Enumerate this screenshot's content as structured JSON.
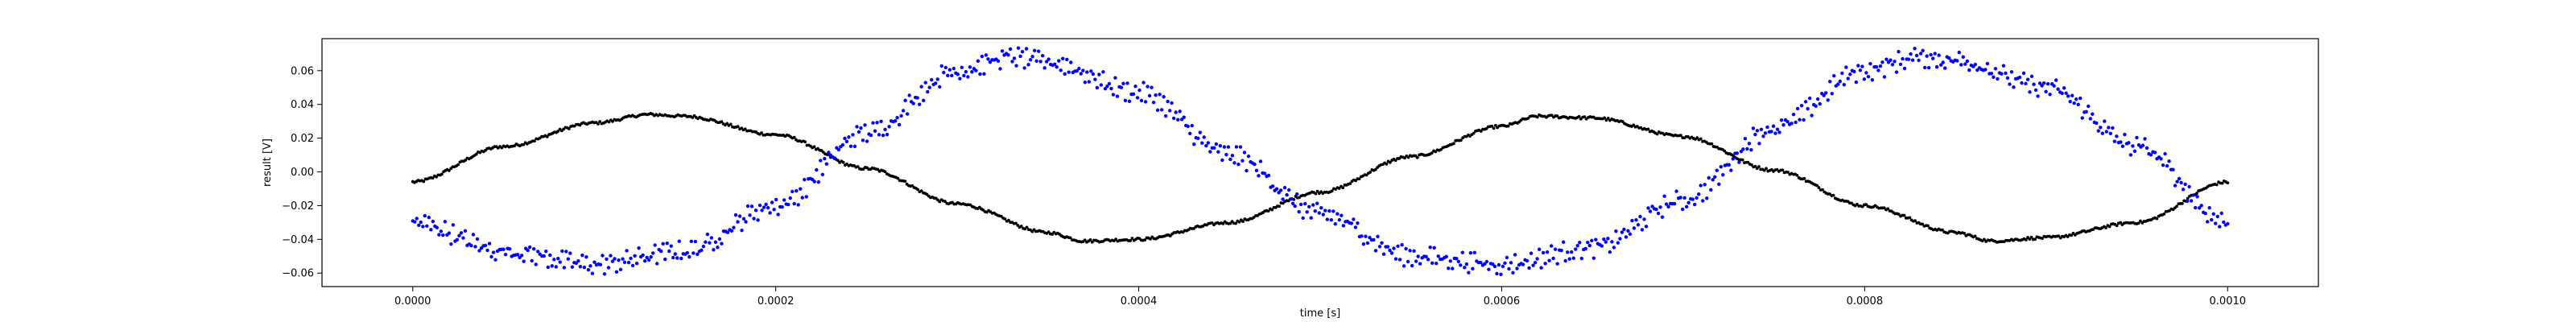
{
  "chart_data": {
    "type": "scatter",
    "title": "",
    "xlabel": "time [s]",
    "ylabel": "result [V]",
    "xlim": [
      -5e-05,
      0.00105
    ],
    "ylim": [
      -0.068,
      0.079
    ],
    "grid": false,
    "legend": "none",
    "x_ticks": [
      0.0,
      0.0002,
      0.0004,
      0.0006,
      0.0008,
      0.001
    ],
    "x_tick_labels": [
      "0.0000",
      "0.0002",
      "0.0004",
      "0.0006",
      "0.0008",
      "0.0010"
    ],
    "y_ticks": [
      -0.06,
      -0.04,
      -0.02,
      0.0,
      0.02,
      0.04,
      0.06
    ],
    "y_tick_labels": [
      "−0.06",
      "−0.04",
      "−0.02",
      "0.00",
      "0.02",
      "0.04",
      "0.06"
    ],
    "series": [
      {
        "color": "#000000",
        "marker": "dot",
        "x": [
          0.0,
          5e-05,
          0.0001,
          0.00013,
          0.00015,
          0.0002,
          0.00025,
          0.0003,
          0.00035,
          0.00037,
          0.0004,
          0.00045,
          0.0005,
          0.00055,
          0.0006,
          0.00062,
          0.00065,
          0.0007,
          0.00075,
          0.0008,
          0.00085,
          0.00087,
          0.0009,
          0.00095,
          0.001
        ],
        "y": [
          -0.006,
          0.015,
          0.029,
          0.034,
          0.033,
          0.022,
          0.002,
          -0.019,
          -0.036,
          -0.041,
          -0.04,
          -0.03,
          -0.012,
          0.009,
          0.027,
          0.033,
          0.032,
          0.021,
          0.001,
          -0.02,
          -0.036,
          -0.041,
          -0.039,
          -0.03,
          -0.006
        ]
      },
      {
        "color": "#0000ff",
        "marker": "dot",
        "x": [
          0.0,
          5e-05,
          0.0001,
          0.00015,
          0.0002,
          0.00025,
          0.0003,
          0.00033,
          0.00035,
          0.0004,
          0.00045,
          0.0005,
          0.00055,
          0.0006,
          0.00065,
          0.0007,
          0.00075,
          0.0008,
          0.00083,
          0.00085,
          0.0009,
          0.00095,
          0.001
        ],
        "y": [
          -0.03,
          -0.047,
          -0.055,
          -0.047,
          -0.02,
          0.023,
          0.06,
          0.068,
          0.065,
          0.047,
          0.01,
          -0.025,
          -0.05,
          -0.055,
          -0.045,
          -0.017,
          0.026,
          0.06,
          0.068,
          0.066,
          0.05,
          0.015,
          -0.03
        ]
      }
    ]
  }
}
